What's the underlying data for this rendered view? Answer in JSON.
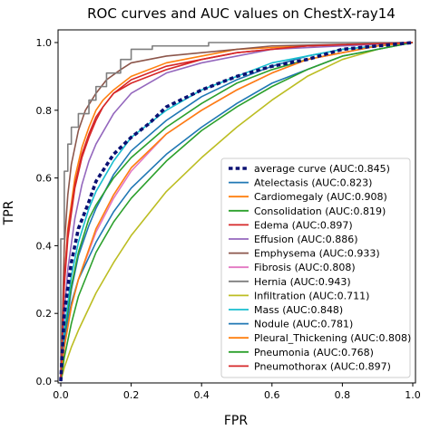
{
  "chart_data": {
    "type": "line",
    "title": "ROC curves and AUC values on ChestX-ray14",
    "xlabel": "FPR",
    "ylabel": "TPR",
    "xlim": [
      0,
      1
    ],
    "ylim": [
      0,
      1
    ],
    "xticks": [
      "0.0",
      "0.2",
      "0.4",
      "0.6",
      "0.8",
      "1.0"
    ],
    "yticks": [
      "0.0",
      "0.2",
      "0.4",
      "0.6",
      "0.8",
      "1.0"
    ],
    "grid": false,
    "legend_position": "lower-right",
    "series": [
      {
        "name": "average curve (AUC:0.845)",
        "auc": 0.845,
        "color": "#0b1173",
        "style": "dotted",
        "points": [
          [
            0,
            0
          ],
          [
            0.01,
            0.2
          ],
          [
            0.03,
            0.35
          ],
          [
            0.05,
            0.45
          ],
          [
            0.08,
            0.53
          ],
          [
            0.1,
            0.59
          ],
          [
            0.15,
            0.67
          ],
          [
            0.2,
            0.72
          ],
          [
            0.25,
            0.76
          ],
          [
            0.3,
            0.81
          ],
          [
            0.4,
            0.86
          ],
          [
            0.5,
            0.9
          ],
          [
            0.6,
            0.93
          ],
          [
            0.7,
            0.95
          ],
          [
            0.8,
            0.98
          ],
          [
            0.9,
            0.99
          ],
          [
            1,
            1
          ]
        ]
      },
      {
        "name": "Atelectasis (AUC:0.823)",
        "auc": 0.823,
        "color": "#1f77b4",
        "style": "solid",
        "points": [
          [
            0,
            0
          ],
          [
            0.01,
            0.12
          ],
          [
            0.03,
            0.27
          ],
          [
            0.05,
            0.37
          ],
          [
            0.08,
            0.46
          ],
          [
            0.1,
            0.51
          ],
          [
            0.15,
            0.61
          ],
          [
            0.2,
            0.68
          ],
          [
            0.3,
            0.77
          ],
          [
            0.4,
            0.84
          ],
          [
            0.5,
            0.89
          ],
          [
            0.6,
            0.93
          ],
          [
            0.7,
            0.96
          ],
          [
            0.8,
            0.98
          ],
          [
            0.9,
            0.99
          ],
          [
            1,
            1
          ]
        ]
      },
      {
        "name": "Cardiomegaly (AUC:0.908)",
        "auc": 0.908,
        "color": "#ff7f0e",
        "style": "solid",
        "points": [
          [
            0,
            0
          ],
          [
            0.01,
            0.3
          ],
          [
            0.02,
            0.45
          ],
          [
            0.04,
            0.6
          ],
          [
            0.06,
            0.69
          ],
          [
            0.08,
            0.75
          ],
          [
            0.1,
            0.8
          ],
          [
            0.12,
            0.83
          ],
          [
            0.15,
            0.86
          ],
          [
            0.2,
            0.9
          ],
          [
            0.3,
            0.94
          ],
          [
            0.4,
            0.96
          ],
          [
            0.5,
            0.98
          ],
          [
            0.7,
            0.99
          ],
          [
            1,
            1
          ]
        ]
      },
      {
        "name": "Consolidation (AUC:0.819)",
        "auc": 0.819,
        "color": "#2ca02c",
        "style": "solid",
        "points": [
          [
            0,
            0
          ],
          [
            0.01,
            0.14
          ],
          [
            0.03,
            0.28
          ],
          [
            0.05,
            0.38
          ],
          [
            0.08,
            0.48
          ],
          [
            0.1,
            0.52
          ],
          [
            0.15,
            0.6
          ],
          [
            0.2,
            0.66
          ],
          [
            0.3,
            0.75
          ],
          [
            0.4,
            0.82
          ],
          [
            0.5,
            0.88
          ],
          [
            0.6,
            0.92
          ],
          [
            0.7,
            0.95
          ],
          [
            0.8,
            0.97
          ],
          [
            0.9,
            0.99
          ],
          [
            1,
            1
          ]
        ]
      },
      {
        "name": "Edema (AUC:0.897)",
        "auc": 0.897,
        "color": "#d62728",
        "style": "solid",
        "points": [
          [
            0,
            0
          ],
          [
            0.01,
            0.28
          ],
          [
            0.02,
            0.42
          ],
          [
            0.04,
            0.57
          ],
          [
            0.06,
            0.66
          ],
          [
            0.08,
            0.72
          ],
          [
            0.1,
            0.77
          ],
          [
            0.12,
            0.81
          ],
          [
            0.15,
            0.85
          ],
          [
            0.2,
            0.89
          ],
          [
            0.3,
            0.93
          ],
          [
            0.4,
            0.95
          ],
          [
            0.5,
            0.97
          ],
          [
            0.7,
            0.99
          ],
          [
            1,
            1
          ]
        ]
      },
      {
        "name": "Effusion (AUC:0.886)",
        "auc": 0.886,
        "color": "#9467bd",
        "style": "solid",
        "points": [
          [
            0,
            0
          ],
          [
            0.01,
            0.2
          ],
          [
            0.02,
            0.33
          ],
          [
            0.04,
            0.48
          ],
          [
            0.06,
            0.58
          ],
          [
            0.08,
            0.65
          ],
          [
            0.1,
            0.7
          ],
          [
            0.15,
            0.79
          ],
          [
            0.2,
            0.85
          ],
          [
            0.3,
            0.91
          ],
          [
            0.4,
            0.94
          ],
          [
            0.5,
            0.96
          ],
          [
            0.6,
            0.98
          ],
          [
            0.8,
            0.99
          ],
          [
            1,
            1
          ]
        ]
      },
      {
        "name": "Emphysema (AUC:0.933)",
        "auc": 0.933,
        "color": "#8c564b",
        "style": "solid",
        "points": [
          [
            0,
            0
          ],
          [
            0.01,
            0.4
          ],
          [
            0.02,
            0.55
          ],
          [
            0.03,
            0.64
          ],
          [
            0.05,
            0.74
          ],
          [
            0.07,
            0.8
          ],
          [
            0.1,
            0.85
          ],
          [
            0.13,
            0.89
          ],
          [
            0.17,
            0.92
          ],
          [
            0.2,
            0.94
          ],
          [
            0.3,
            0.96
          ],
          [
            0.4,
            0.97
          ],
          [
            0.6,
            0.99
          ],
          [
            1,
            1
          ]
        ]
      },
      {
        "name": "Fibrosis (AUC:0.808)",
        "auc": 0.808,
        "color": "#e377c2",
        "style": "solid",
        "points": [
          [
            0,
            0
          ],
          [
            0.01,
            0.1
          ],
          [
            0.03,
            0.22
          ],
          [
            0.05,
            0.3
          ],
          [
            0.1,
            0.44
          ],
          [
            0.15,
            0.54
          ],
          [
            0.2,
            0.62
          ],
          [
            0.3,
            0.73
          ],
          [
            0.4,
            0.8
          ],
          [
            0.5,
            0.86
          ],
          [
            0.6,
            0.91
          ],
          [
            0.7,
            0.95
          ],
          [
            0.8,
            0.97
          ],
          [
            0.9,
            0.99
          ],
          [
            1,
            1
          ]
        ]
      },
      {
        "name": "Hernia (AUC:0.943)",
        "auc": 0.943,
        "color": "#7f7f7f",
        "style": "step",
        "points": [
          [
            0,
            0
          ],
          [
            0,
            0.42
          ],
          [
            0.01,
            0.42
          ],
          [
            0.01,
            0.62
          ],
          [
            0.02,
            0.62
          ],
          [
            0.02,
            0.7
          ],
          [
            0.03,
            0.7
          ],
          [
            0.03,
            0.75
          ],
          [
            0.05,
            0.75
          ],
          [
            0.05,
            0.79
          ],
          [
            0.08,
            0.79
          ],
          [
            0.08,
            0.83
          ],
          [
            0.1,
            0.83
          ],
          [
            0.1,
            0.87
          ],
          [
            0.13,
            0.87
          ],
          [
            0.13,
            0.91
          ],
          [
            0.17,
            0.91
          ],
          [
            0.17,
            0.95
          ],
          [
            0.2,
            0.95
          ],
          [
            0.2,
            0.98
          ],
          [
            0.26,
            0.98
          ],
          [
            0.26,
            0.99
          ],
          [
            0.42,
            0.99
          ],
          [
            0.42,
            1
          ],
          [
            1,
            1
          ]
        ]
      },
      {
        "name": "Infiltration (AUC:0.711)",
        "auc": 0.711,
        "color": "#bcbd22",
        "style": "solid",
        "points": [
          [
            0,
            0
          ],
          [
            0.01,
            0.04
          ],
          [
            0.03,
            0.1
          ],
          [
            0.05,
            0.15
          ],
          [
            0.1,
            0.26
          ],
          [
            0.15,
            0.35
          ],
          [
            0.2,
            0.43
          ],
          [
            0.3,
            0.56
          ],
          [
            0.4,
            0.66
          ],
          [
            0.5,
            0.75
          ],
          [
            0.6,
            0.83
          ],
          [
            0.7,
            0.9
          ],
          [
            0.8,
            0.95
          ],
          [
            0.9,
            0.98
          ],
          [
            1,
            1
          ]
        ]
      },
      {
        "name": "Mass (AUC:0.848)",
        "auc": 0.848,
        "color": "#17becf",
        "style": "solid",
        "points": [
          [
            0,
            0
          ],
          [
            0.01,
            0.15
          ],
          [
            0.03,
            0.31
          ],
          [
            0.05,
            0.41
          ],
          [
            0.08,
            0.51
          ],
          [
            0.1,
            0.56
          ],
          [
            0.15,
            0.65
          ],
          [
            0.2,
            0.72
          ],
          [
            0.3,
            0.8
          ],
          [
            0.4,
            0.86
          ],
          [
            0.5,
            0.9
          ],
          [
            0.6,
            0.94
          ],
          [
            0.7,
            0.96
          ],
          [
            0.8,
            0.98
          ],
          [
            0.9,
            0.99
          ],
          [
            1,
            1
          ]
        ]
      },
      {
        "name": "Nodule (AUC:0.781)",
        "auc": 0.781,
        "color": "#1f77b4",
        "style": "solid",
        "points": [
          [
            0,
            0
          ],
          [
            0.01,
            0.12
          ],
          [
            0.03,
            0.23
          ],
          [
            0.05,
            0.3
          ],
          [
            0.1,
            0.41
          ],
          [
            0.15,
            0.5
          ],
          [
            0.2,
            0.57
          ],
          [
            0.3,
            0.67
          ],
          [
            0.4,
            0.75
          ],
          [
            0.5,
            0.82
          ],
          [
            0.6,
            0.88
          ],
          [
            0.7,
            0.92
          ],
          [
            0.8,
            0.96
          ],
          [
            0.9,
            0.98
          ],
          [
            1,
            1
          ]
        ]
      },
      {
        "name": "Pleural_Thickening (AUC:0.808)",
        "auc": 0.808,
        "color": "#ff7f0e",
        "style": "solid",
        "points": [
          [
            0,
            0
          ],
          [
            0.01,
            0.1
          ],
          [
            0.03,
            0.22
          ],
          [
            0.05,
            0.3
          ],
          [
            0.1,
            0.45
          ],
          [
            0.15,
            0.55
          ],
          [
            0.2,
            0.63
          ],
          [
            0.3,
            0.73
          ],
          [
            0.4,
            0.8
          ],
          [
            0.5,
            0.86
          ],
          [
            0.6,
            0.91
          ],
          [
            0.7,
            0.95
          ],
          [
            0.8,
            0.97
          ],
          [
            0.9,
            0.99
          ],
          [
            1,
            1
          ]
        ]
      },
      {
        "name": "Pneumonia (AUC:0.768)",
        "auc": 0.768,
        "color": "#2ca02c",
        "style": "solid",
        "points": [
          [
            0,
            0
          ],
          [
            0.01,
            0.07
          ],
          [
            0.03,
            0.17
          ],
          [
            0.05,
            0.25
          ],
          [
            0.1,
            0.38
          ],
          [
            0.15,
            0.47
          ],
          [
            0.2,
            0.54
          ],
          [
            0.3,
            0.65
          ],
          [
            0.4,
            0.74
          ],
          [
            0.5,
            0.81
          ],
          [
            0.6,
            0.87
          ],
          [
            0.7,
            0.92
          ],
          [
            0.8,
            0.96
          ],
          [
            0.9,
            0.98
          ],
          [
            1,
            1
          ]
        ]
      },
      {
        "name": "Pneumothorax (AUC:0.897)",
        "auc": 0.897,
        "color": "#d62728",
        "style": "solid",
        "points": [
          [
            0,
            0
          ],
          [
            0.01,
            0.3
          ],
          [
            0.02,
            0.44
          ],
          [
            0.04,
            0.58
          ],
          [
            0.06,
            0.67
          ],
          [
            0.08,
            0.73
          ],
          [
            0.1,
            0.78
          ],
          [
            0.12,
            0.81
          ],
          [
            0.15,
            0.85
          ],
          [
            0.2,
            0.88
          ],
          [
            0.3,
            0.92
          ],
          [
            0.4,
            0.95
          ],
          [
            0.5,
            0.97
          ],
          [
            0.7,
            0.99
          ],
          [
            1,
            1
          ]
        ]
      }
    ]
  }
}
